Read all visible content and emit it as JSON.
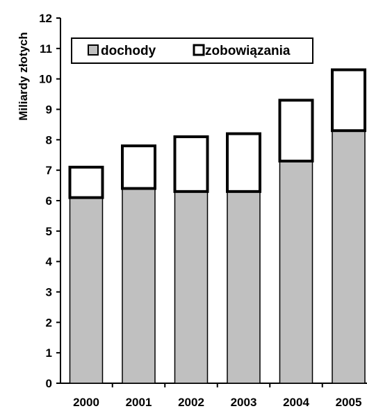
{
  "chart_data": {
    "type": "bar",
    "stacked": true,
    "categories": [
      "2000",
      "2001",
      "2002",
      "2003",
      "2004",
      "2005"
    ],
    "series": [
      {
        "name": "dochody",
        "values": [
          6.1,
          6.4,
          6.3,
          6.3,
          7.3,
          8.3
        ],
        "color": "#c0c0c0"
      },
      {
        "name": "zobowiązania",
        "values": [
          1.0,
          1.4,
          1.8,
          1.9,
          2.0,
          2.0
        ],
        "color": "#ffffff"
      }
    ],
    "title": "",
    "xlabel": "",
    "ylabel": "Miliardy złotych",
    "ylim": [
      0,
      12
    ],
    "yticks": [
      0,
      1,
      2,
      3,
      4,
      5,
      6,
      7,
      8,
      9,
      10,
      11,
      12
    ],
    "grid": false,
    "legend_position": "top",
    "stroke_color": "#000000"
  }
}
